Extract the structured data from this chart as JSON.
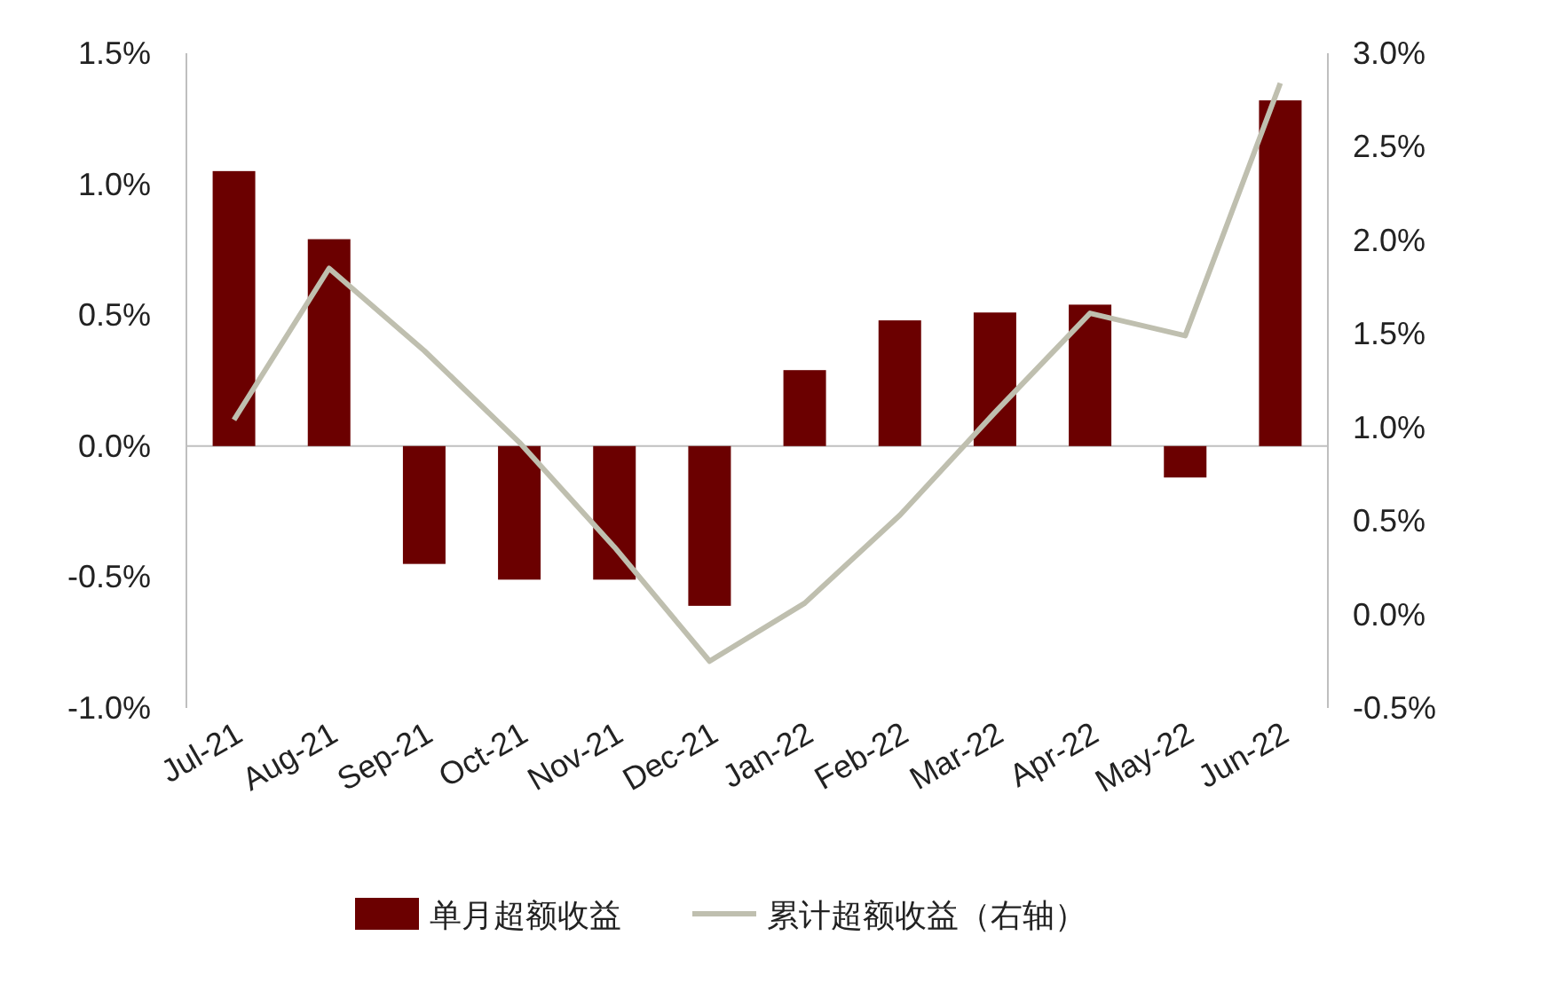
{
  "chart_data": {
    "type": "bar",
    "categories": [
      "Jul-21",
      "Aug-21",
      "Sep-21",
      "Oct-21",
      "Nov-21",
      "Dec-21",
      "Jan-22",
      "Feb-22",
      "Mar-22",
      "Apr-22",
      "May-22",
      "Jun-22"
    ],
    "series": [
      {
        "name": "单月超额收益",
        "color": "#6b0000",
        "values": [
          1.05,
          0.79,
          -0.45,
          -0.51,
          -0.51,
          -0.61,
          0.29,
          0.48,
          0.51,
          0.54,
          -0.12,
          1.32
        ]
      },
      {
        "name": "累计超额收益（右轴）",
        "type": "line",
        "axis": "y2",
        "color": "#bfbfaf",
        "values": [
          1.04,
          1.85,
          1.41,
          0.92,
          0.36,
          -0.25,
          0.06,
          0.53,
          1.08,
          1.61,
          1.49,
          2.84
        ]
      }
    ],
    "ylim": [
      -1.0,
      1.5
    ],
    "yticks": [
      {
        "value": -1.0,
        "label": "-1.0%"
      },
      {
        "value": -0.5,
        "label": "-0.5%"
      },
      {
        "value": 0,
        "label": "0.0%"
      },
      {
        "value": 0.5,
        "label": "0.5%"
      },
      {
        "value": 1.0,
        "label": "1.0%"
      },
      {
        "value": 1.5,
        "label": "1.5%"
      }
    ],
    "y2lim": [
      -0.5,
      3.0
    ],
    "y2ticks": [
      {
        "value": -0.5,
        "label": "-0.5%"
      },
      {
        "value": 0,
        "label": "0.0%"
      },
      {
        "value": 0.5,
        "label": "0.5%"
      },
      {
        "value": 1.0,
        "label": "1.0%"
      },
      {
        "value": 1.5,
        "label": "1.5%"
      },
      {
        "value": 2.0,
        "label": "2.0%"
      },
      {
        "value": 2.5,
        "label": "2.5%"
      },
      {
        "value": 3.0,
        "label": "3.0%"
      }
    ],
    "legend": "bottom"
  }
}
